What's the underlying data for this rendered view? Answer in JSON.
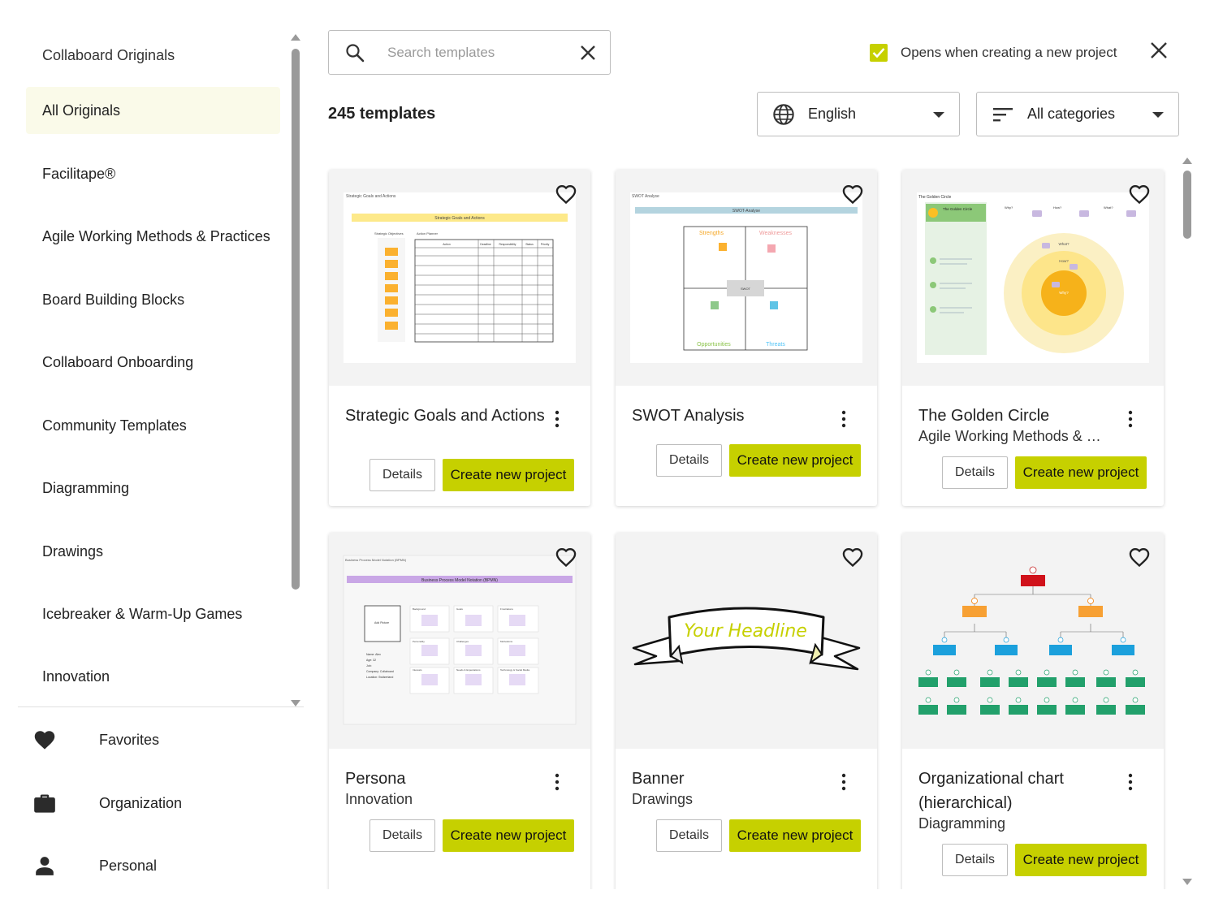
{
  "sidebar": {
    "title": "Collaboard Originals",
    "items": [
      {
        "label": "All Originals"
      },
      {
        "label": "Facilitape®"
      },
      {
        "label": "Agile Working Methods & Practices"
      },
      {
        "label": "Board Building Blocks"
      },
      {
        "label": "Collaboard Onboarding"
      },
      {
        "label": "Community Templates"
      },
      {
        "label": "Diagramming"
      },
      {
        "label": "Drawings"
      },
      {
        "label": "Icebreaker & Warm-Up Games"
      },
      {
        "label": "Innovation"
      }
    ],
    "bottom": [
      {
        "label": "Favorites",
        "icon": "heart-icon"
      },
      {
        "label": "Organization",
        "icon": "briefcase-icon"
      },
      {
        "label": "Personal",
        "icon": "person-icon"
      }
    ]
  },
  "search": {
    "placeholder": "Search templates",
    "value": ""
  },
  "opens_label": "Opens when creating a new project",
  "opens_checked": true,
  "count_label": "245 templates",
  "language": {
    "value": "English",
    "icon": "globe-icon"
  },
  "category": {
    "value": "All categories",
    "icon": "filter-icon"
  },
  "accent_color": "#c6d000",
  "buttons": {
    "details": "Details",
    "create": "Create new project"
  },
  "cards": [
    {
      "title": "Strategic Goals and Actions",
      "subtitle": "",
      "preview": {
        "caption": "Strategic Goals and Actions",
        "banner": "Strategic Goals and Actions",
        "objectives_label": "Strategic Objectives",
        "planner_label": "Action Planner",
        "columns": [
          "Action",
          "Deadline",
          "Responsibility",
          "Status",
          "Priority"
        ]
      }
    },
    {
      "title": "SWOT Analysis",
      "subtitle": "",
      "preview": {
        "caption": "SWOT Analyse",
        "banner": "SWOT-Analyse",
        "quadrants": [
          "Strengths",
          "Weaknesses",
          "Opportunities",
          "Threats"
        ],
        "center": "SWOT"
      }
    },
    {
      "title": "The Golden Circle",
      "subtitle": "Agile Working Methods & Practices",
      "preview": {
        "caption": "The Golden Circle",
        "header": "The Golden Circle",
        "columns": [
          "Why?",
          "How?",
          "What?"
        ],
        "rings": [
          "What?",
          "How?",
          "Why?"
        ]
      }
    },
    {
      "title": "Persona",
      "subtitle": "Innovation",
      "preview": {
        "caption": "Business Process Model Notation (BPMN)",
        "banner": "Business Process Model Notation (BPMN)",
        "picture_label": "Add Picture",
        "fields": [
          "Name: Alex",
          "Age: 32",
          "Job:",
          "Company: Collaboard",
          "Location: Switzerland"
        ],
        "grid": [
          "Background",
          "Goals",
          "Frustrations",
          "Personality",
          "Challenges",
          "Motivations",
          "Interests",
          "Needs & Expectations",
          "Technology & Social Media"
        ]
      }
    },
    {
      "title": "Banner",
      "subtitle": "Drawings",
      "preview": {
        "headline": "Your Headline"
      }
    },
    {
      "title": "Organizational chart (hierarchical)",
      "subtitle": "Diagramming",
      "preview": {}
    }
  ]
}
